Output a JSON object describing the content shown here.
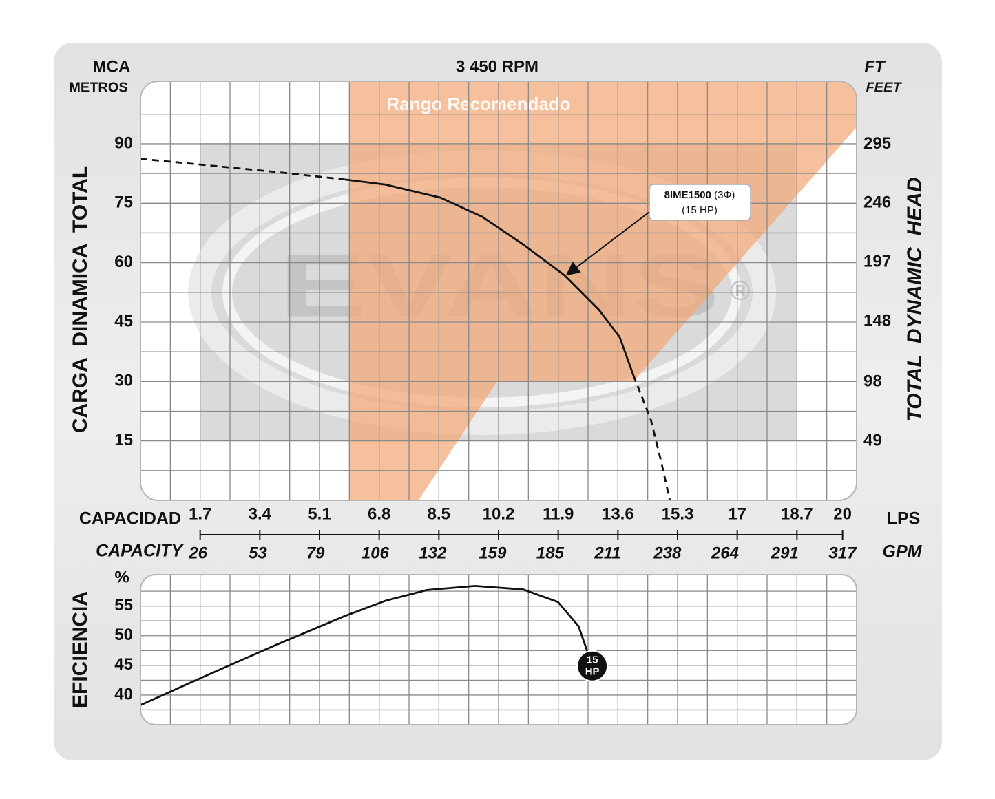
{
  "chart_data": [
    {
      "type": "line",
      "title": "3 450 RPM",
      "ylabel": "CARGA  DINAMICA  TOTAL",
      "yunit": "MCA",
      "yunit_sub": "METROS",
      "y2label": "TOTAL  DYNAMIC  HEAD",
      "y2unit": "FT",
      "y2unit_sub": "FEET",
      "xlabel": "CAPACIDAD",
      "xunit": "LPS",
      "x2label": "CAPACITY",
      "x2unit": "GPM",
      "xlim": [
        0,
        20.4
      ],
      "xticks": [
        1.7,
        3.4,
        5.1,
        6.8,
        8.5,
        10.2,
        11.9,
        13.6,
        15.3,
        17,
        18.7,
        20
      ],
      "x2lim": [
        0,
        323.4
      ],
      "x2ticks": [
        26,
        53,
        79,
        106,
        132,
        159,
        185,
        211,
        238,
        264,
        291,
        317
      ],
      "ylim": [
        0,
        105.8
      ],
      "yticks": [
        15,
        30,
        45,
        60,
        75,
        90
      ],
      "y2lim": [
        0,
        347.1
      ],
      "y2ticks": [
        49,
        98,
        148,
        197,
        246,
        295
      ],
      "xgrid": [
        0.85,
        1.7,
        2.55,
        3.4,
        4.25,
        5.1,
        5.95,
        6.8,
        7.65,
        8.5,
        9.35,
        10.2,
        11.05,
        11.9,
        12.75,
        13.6,
        14.45,
        15.3,
        16.15,
        17,
        17.85,
        18.7,
        19.55
      ],
      "ygrid": [
        7.5,
        15,
        22.5,
        30,
        37.5,
        45,
        52.5,
        60,
        67.5,
        75,
        82.5,
        90,
        97.5
      ],
      "watermark": "EVANS",
      "watermark_mark": "®",
      "region": {
        "label": "Rango Recomendado",
        "color": "#f4a877",
        "x": [
          5.94,
          20.4,
          20.4,
          14.04,
          10.16,
          7.92,
          5.94
        ],
        "y": [
          105.8,
          105.8,
          94.2,
          30,
          30,
          0,
          0
        ]
      },
      "series": [
        {
          "style": "dashed",
          "color": "#111111",
          "x": [
            0,
            1.88,
            3.84,
            5.81
          ],
          "values": [
            86.2,
            84.6,
            82.9,
            81.0
          ]
        },
        {
          "style": "solid",
          "color": "#111111",
          "x": [
            5.81,
            6.98,
            8.55,
            9.73,
            10.9,
            12.08,
            13.06,
            13.65,
            14.04
          ],
          "values": [
            81.0,
            79.7,
            76.4,
            71.6,
            64.6,
            56.8,
            48.1,
            41.2,
            31.6
          ]
        },
        {
          "style": "dashed",
          "color": "#111111",
          "x": [
            14.04,
            14.54,
            14.83,
            15.08
          ],
          "values": [
            31.6,
            20.3,
            9.9,
            0
          ]
        }
      ],
      "annotation": {
        "text": [
          "8IME1500",
          "(3Φ)",
          "(15 HP)"
        ],
        "x": 12.18,
        "y": 57.2
      }
    },
    {
      "type": "line",
      "ylabel": "EFICIENCIA",
      "yunit": "%",
      "xlim": [
        0,
        20.4
      ],
      "ylim": [
        35,
        60.3
      ],
      "yticks": [
        40,
        45,
        50,
        55
      ],
      "xgrid": [
        0.85,
        1.7,
        2.55,
        3.4,
        4.25,
        5.1,
        5.95,
        6.8,
        7.65,
        8.5,
        9.35,
        10.2,
        11.05,
        11.9,
        12.75,
        13.6,
        14.45,
        15.3,
        16.15,
        17,
        17.85,
        18.7,
        19.55
      ],
      "ygrid": [
        37.5,
        40,
        42.5,
        45,
        47.5,
        50,
        52.5,
        55,
        57.5
      ],
      "series": [
        {
          "style": "solid",
          "color": "#111111",
          "x": [
            0,
            1.88,
            3.84,
            5.81,
            6.98,
            8.16,
            9.53,
            10.9,
            11.89,
            12.48,
            12.87
          ],
          "values": [
            38.3,
            43.3,
            48.4,
            53.3,
            55.9,
            57.7,
            58.4,
            57.8,
            55.7,
            51.6,
            44.9
          ]
        }
      ],
      "end_label": [
        "15",
        "HP"
      ]
    }
  ]
}
